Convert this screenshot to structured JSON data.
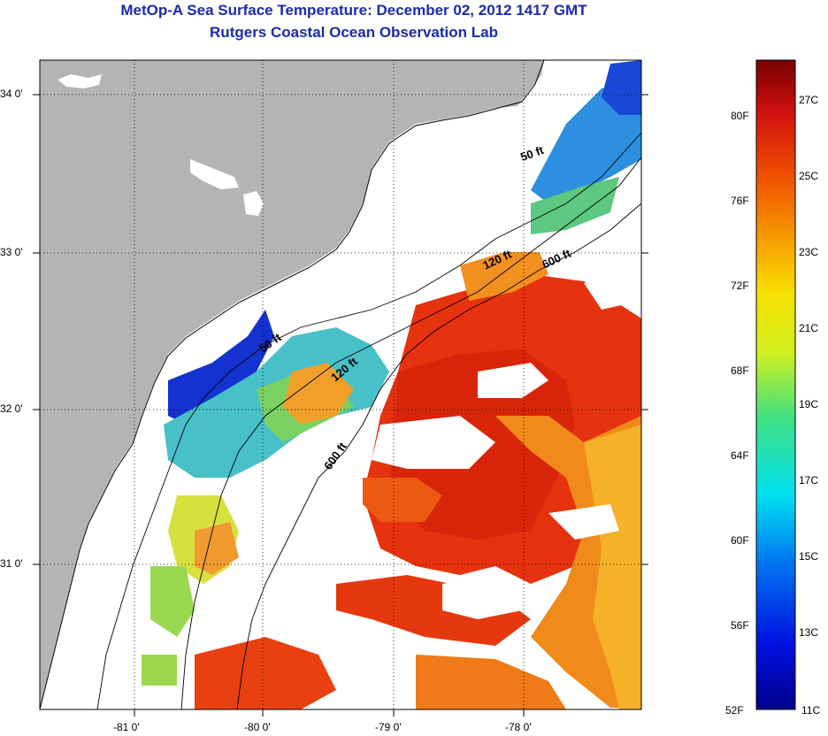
{
  "title": {
    "line1": "MetOp-A Sea Surface Temperature:  December 02, 2012 1417 GMT",
    "line2": "Rutgers Coastal Ocean Observation Lab"
  },
  "map": {
    "lon_ticks": [
      "-81 0'",
      "-80 0'",
      "-79 0'",
      "-78 0'"
    ],
    "lat_ticks": [
      "34 0'",
      "33 0'",
      "32 0'",
      "31 0'"
    ],
    "contour_labels": [
      "50 ft",
      "120 ft",
      "600 ft",
      "50 ft",
      "120 ft",
      "600 ft"
    ]
  },
  "colorbar": {
    "fahrenheit": [
      "80F",
      "76F",
      "72F",
      "68F",
      "64F",
      "60F",
      "56F",
      "52F"
    ],
    "celsius": [
      "27C",
      "25C",
      "23C",
      "21C",
      "19C",
      "17C",
      "15C",
      "13C",
      "11C"
    ]
  },
  "colors": {
    "land": "#b4b4b4",
    "title": "#1a2bb0",
    "warm": "#e8300f",
    "cool": "#1838d8"
  }
}
